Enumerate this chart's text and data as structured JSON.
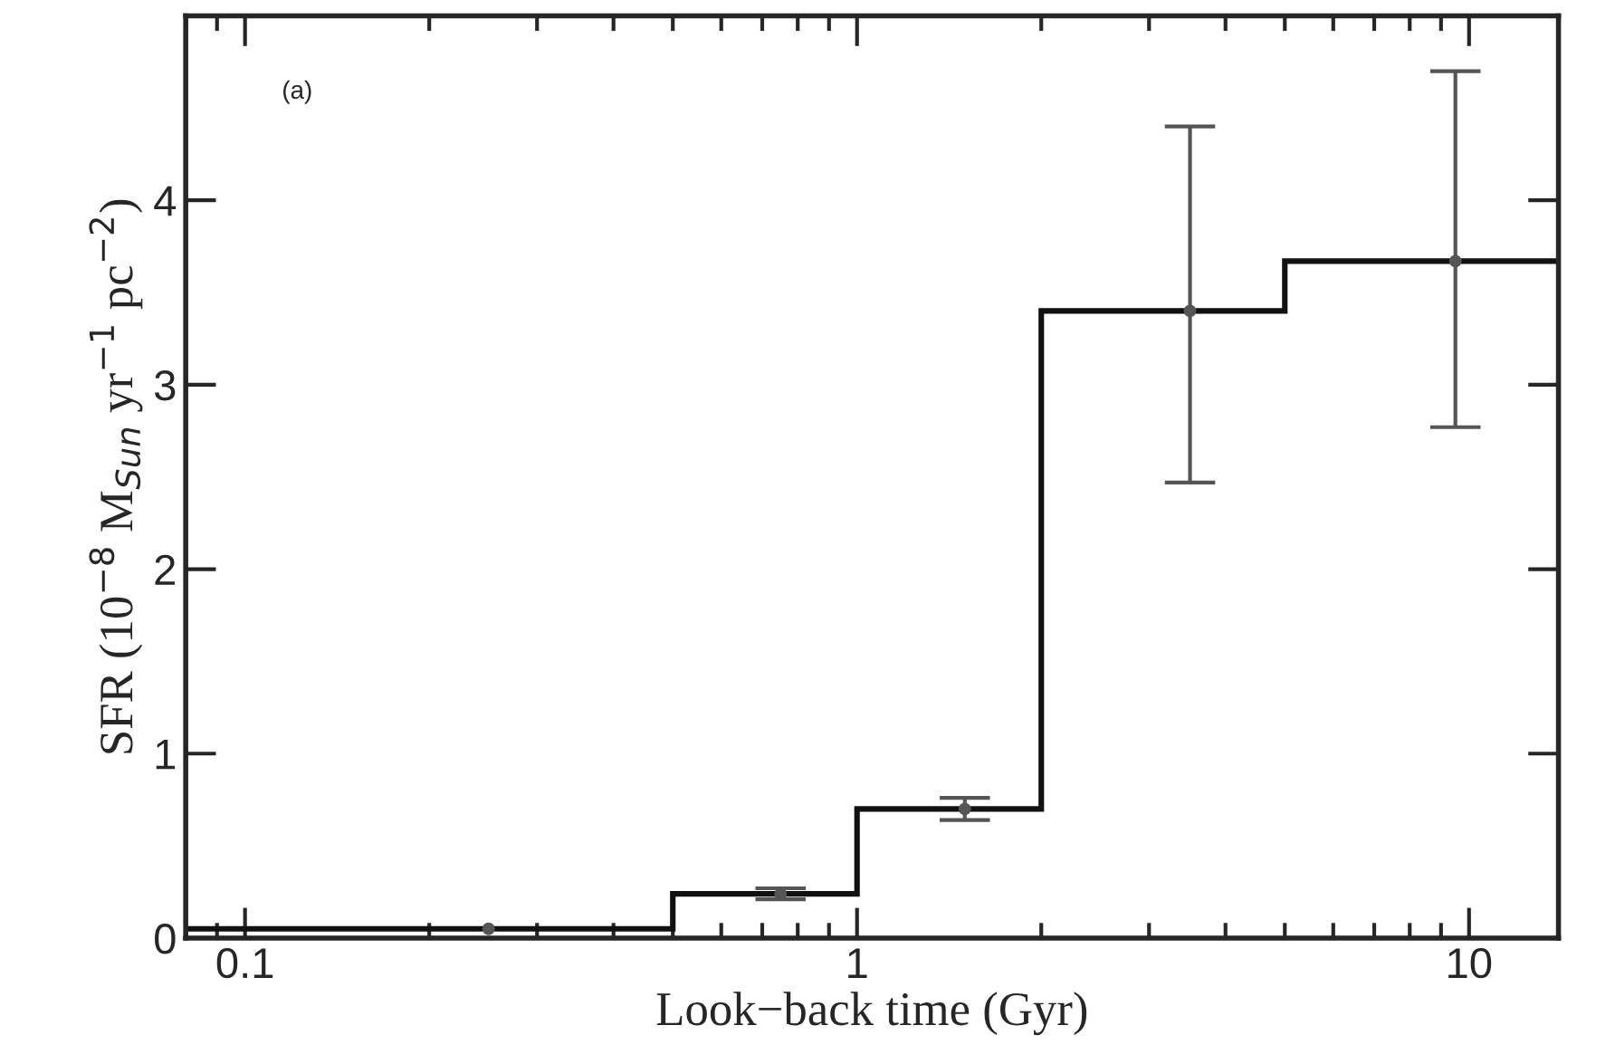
{
  "chart_data": {
    "type": "histogram",
    "xlabel": "Look−back time (Gyr)",
    "ylabel": "SFR (10$^{−8}$ M$_{Sun}$ yr$^{−1}$ pc$^{−2}$)",
    "annotations": [
      "(a)"
    ],
    "series": [
      {
        "color": "#111111",
        "bins": [
          0.08,
          0.5,
          1,
          2,
          5,
          14
        ],
        "values": [
          0.05,
          0.24,
          0.7,
          3.4,
          3.67
        ]
      },
      {
        "type": "scatter",
        "color": "#555555",
        "x": [
          0.25,
          0.75,
          1.5,
          3.5,
          9.5
        ],
        "values": [
          0.05,
          0.24,
          0.7,
          3.4,
          3.67
        ],
        "errors": [
          null,
          [
            0.21,
            0.27
          ],
          [
            0.64,
            0.76
          ],
          [
            2.47,
            4.4
          ],
          [
            2.77,
            4.7
          ]
        ]
      }
    ],
    "log": "x",
    "xlim": [
      0.08,
      14
    ],
    "xticks": [
      0.1,
      1,
      10
    ],
    "ylim": [
      0,
      5
    ],
    "yticks": [
      0,
      1,
      2,
      3,
      4
    ],
    "marker": "circle",
    "grid": false,
    "legend": false
  }
}
